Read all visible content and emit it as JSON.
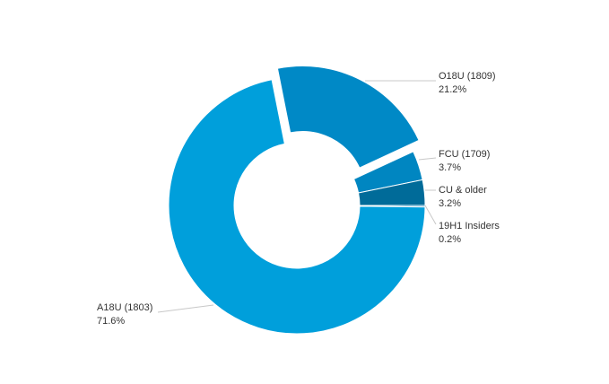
{
  "chart_data": {
    "type": "pie",
    "donut": true,
    "title": "",
    "slices": [
      {
        "label": "19H1 Insiders",
        "value": 0.2,
        "value_label": "0.2%",
        "color": "#0079b5",
        "exploded": false
      },
      {
        "label": "A18U (1803)",
        "value": 71.6,
        "value_label": "71.6%",
        "color": "#009fdb",
        "exploded": false
      },
      {
        "label": "O18U (1809)",
        "value": 21.2,
        "value_label": "21.2%",
        "color": "#0089c6",
        "exploded": true
      },
      {
        "label": "FCU (1709)",
        "value": 3.7,
        "value_label": "3.7%",
        "color": "#0086c1",
        "exploded": false
      },
      {
        "label": "CU & older",
        "value": 3.2,
        "value_label": "3.2%",
        "color": "#006b99",
        "exploded": false
      }
    ]
  }
}
